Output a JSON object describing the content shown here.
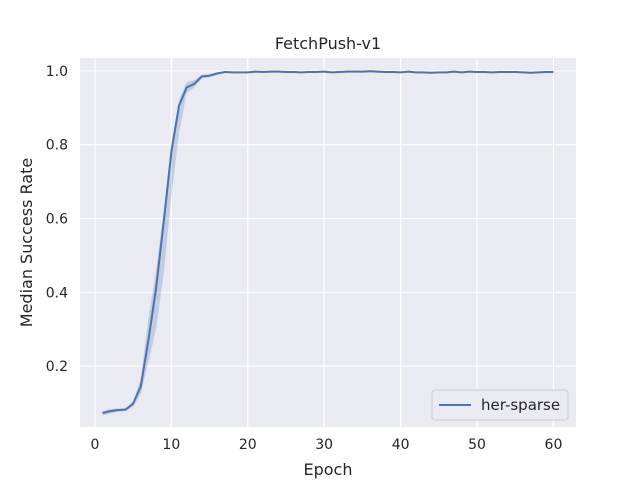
{
  "chart_data": {
    "type": "line",
    "title": "FetchPush-v1",
    "xlabel": "Epoch",
    "ylabel": "Median Success Rate",
    "xlim": [
      -1.95,
      62.95
    ],
    "ylim": [
      0.035,
      1.035
    ],
    "xticks": [
      0,
      10,
      20,
      30,
      40,
      50,
      60
    ],
    "yticks": [
      0.2,
      0.4,
      0.6,
      0.8,
      1.0
    ],
    "ytick_labels": [
      "0.2",
      "0.4",
      "0.6",
      "0.8",
      "1.0"
    ],
    "grid": true,
    "legend_position": "lower-right",
    "series": [
      {
        "name": "her-sparse",
        "color": "#4c72b0",
        "x": [
          1,
          2,
          3,
          4,
          5,
          6,
          7,
          8,
          9,
          10,
          11,
          12,
          13,
          14,
          15,
          16,
          17,
          18,
          19,
          20,
          21,
          22,
          23,
          24,
          25,
          26,
          27,
          28,
          29,
          30,
          31,
          32,
          33,
          34,
          35,
          36,
          37,
          38,
          39,
          40,
          41,
          42,
          43,
          44,
          45,
          46,
          47,
          48,
          49,
          50,
          51,
          52,
          53,
          54,
          55,
          56,
          57,
          58,
          59,
          60
        ],
        "y": [
          0.073,
          0.078,
          0.081,
          0.082,
          0.098,
          0.145,
          0.27,
          0.41,
          0.59,
          0.78,
          0.905,
          0.955,
          0.965,
          0.985,
          0.987,
          0.993,
          0.997,
          0.996,
          0.996,
          0.996,
          0.998,
          0.997,
          0.998,
          0.998,
          0.997,
          0.997,
          0.996,
          0.997,
          0.997,
          0.998,
          0.996,
          0.997,
          0.998,
          0.998,
          0.998,
          0.999,
          0.998,
          0.997,
          0.997,
          0.996,
          0.998,
          0.996,
          0.996,
          0.995,
          0.996,
          0.996,
          0.998,
          0.996,
          0.998,
          0.997,
          0.997,
          0.996,
          0.997,
          0.997,
          0.997,
          0.996,
          0.995,
          0.996,
          0.997,
          0.997
        ],
        "y_lower": [
          0.066,
          0.071,
          0.076,
          0.078,
          0.09,
          0.125,
          0.21,
          0.3,
          0.45,
          0.66,
          0.83,
          0.94,
          0.955,
          0.98,
          0.983,
          0.99,
          0.995,
          0.994,
          0.994,
          0.994,
          0.996,
          0.995,
          0.996,
          0.996,
          0.995,
          0.995,
          0.994,
          0.995,
          0.995,
          0.996,
          0.994,
          0.995,
          0.996,
          0.996,
          0.996,
          0.997,
          0.996,
          0.995,
          0.995,
          0.994,
          0.996,
          0.994,
          0.994,
          0.993,
          0.994,
          0.994,
          0.996,
          0.994,
          0.996,
          0.995,
          0.995,
          0.994,
          0.995,
          0.995,
          0.995,
          0.994,
          0.993,
          0.994,
          0.995,
          0.995
        ],
        "y_upper": [
          0.078,
          0.083,
          0.085,
          0.086,
          0.105,
          0.165,
          0.33,
          0.46,
          0.62,
          0.8,
          0.92,
          0.97,
          0.975,
          0.99,
          0.991,
          0.996,
          0.999,
          0.998,
          0.998,
          0.998,
          1.0,
          0.999,
          1.0,
          1.0,
          0.999,
          0.999,
          0.998,
          0.999,
          0.999,
          1.0,
          0.998,
          0.999,
          1.0,
          1.0,
          1.0,
          1.0,
          1.0,
          0.999,
          0.999,
          0.998,
          1.0,
          0.998,
          0.998,
          0.997,
          0.998,
          0.998,
          1.0,
          0.998,
          1.0,
          0.999,
          0.999,
          0.998,
          0.999,
          0.999,
          0.999,
          0.998,
          0.997,
          0.998,
          0.999,
          0.999
        ]
      }
    ]
  },
  "style": {
    "plot_background": "#eaeaf2",
    "grid_color": "#ffffff",
    "band_color": "#4c72b0"
  }
}
